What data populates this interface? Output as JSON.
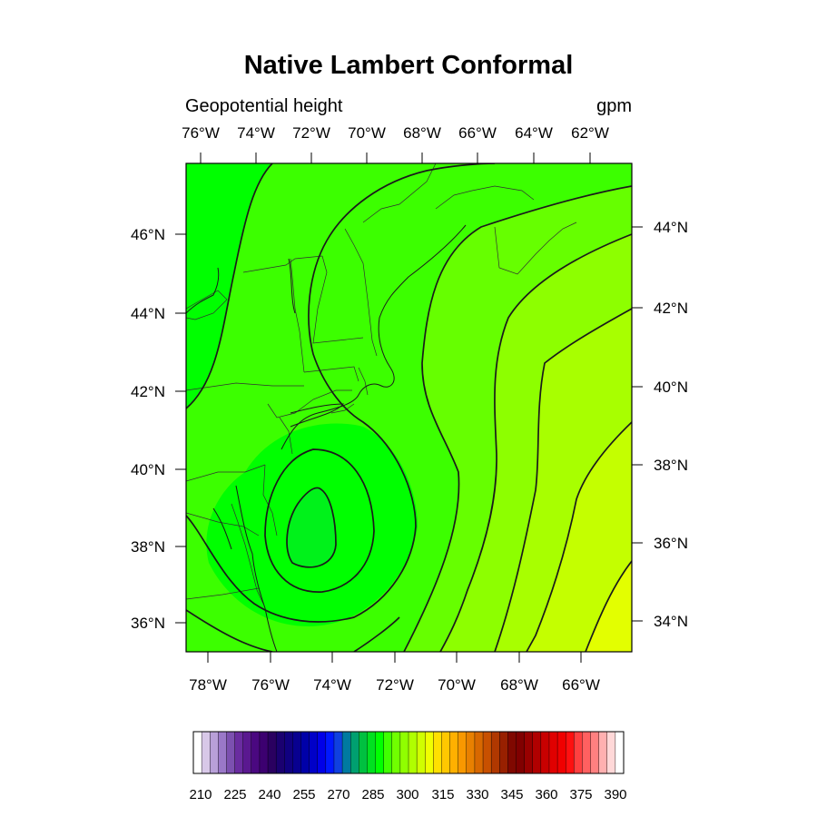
{
  "title": "Native Lambert Conformal",
  "subtitle_left": "Geopotential height",
  "subtitle_right": "gpm",
  "colors": {
    "c1": "#00f21a",
    "c2": "#00ff00",
    "c3": "#3cff00",
    "c4": "#66ff00",
    "c5": "#8dff00",
    "c6": "#a8ff00",
    "c7": "#c4ff00",
    "c8": "#e3ff00",
    "c9": "#ffff00",
    "contour": "#1a1a1a",
    "boundary": "#303030"
  },
  "map": {
    "top_lon_labels": [
      "76°W",
      "74°W",
      "72°W",
      "70°W",
      "68°W",
      "66°W",
      "64°W",
      "62°W"
    ],
    "bottom_lon_labels": [
      "78°W",
      "76°W",
      "74°W",
      "72°W",
      "70°W",
      "68°W",
      "66°W"
    ],
    "left_lat_labels": [
      "46°N",
      "44°N",
      "42°N",
      "40°N",
      "38°N",
      "36°N"
    ],
    "right_lat_labels": [
      "44°N",
      "42°N",
      "40°N",
      "38°N",
      "36°N",
      "34°N"
    ]
  },
  "colorbar": {
    "labels": [
      "210",
      "225",
      "240",
      "255",
      "270",
      "285",
      "300",
      "315",
      "330",
      "345",
      "360",
      "375",
      "390"
    ],
    "colors": [
      "#ffffff",
      "#d8c8e8",
      "#b8a0d8",
      "#9a78c8",
      "#7c50b0",
      "#6a2ca0",
      "#5a1890",
      "#4a0880",
      "#3c0070",
      "#2a0060",
      "#1a0070",
      "#100080",
      "#080090",
      "#0000a8",
      "#0000c8",
      "#0000e8",
      "#0018ff",
      "#1040e0",
      "#007aa0",
      "#00a070",
      "#00c040",
      "#00e020",
      "#00ff00",
      "#40ff00",
      "#70ff00",
      "#90ff00",
      "#b0ff00",
      "#d0ff00",
      "#f0ff00",
      "#ffe000",
      "#ffc800",
      "#ffb000",
      "#f89800",
      "#e88000",
      "#d86800",
      "#c85000",
      "#b03800",
      "#982000",
      "#800800",
      "#800000",
      "#980000",
      "#b00000",
      "#c80000",
      "#e00000",
      "#f00000",
      "#ff1010",
      "#ff4040",
      "#ff6060",
      "#ff8080",
      "#ffb0b0",
      "#ffd8d8",
      "#ffffff"
    ]
  }
}
